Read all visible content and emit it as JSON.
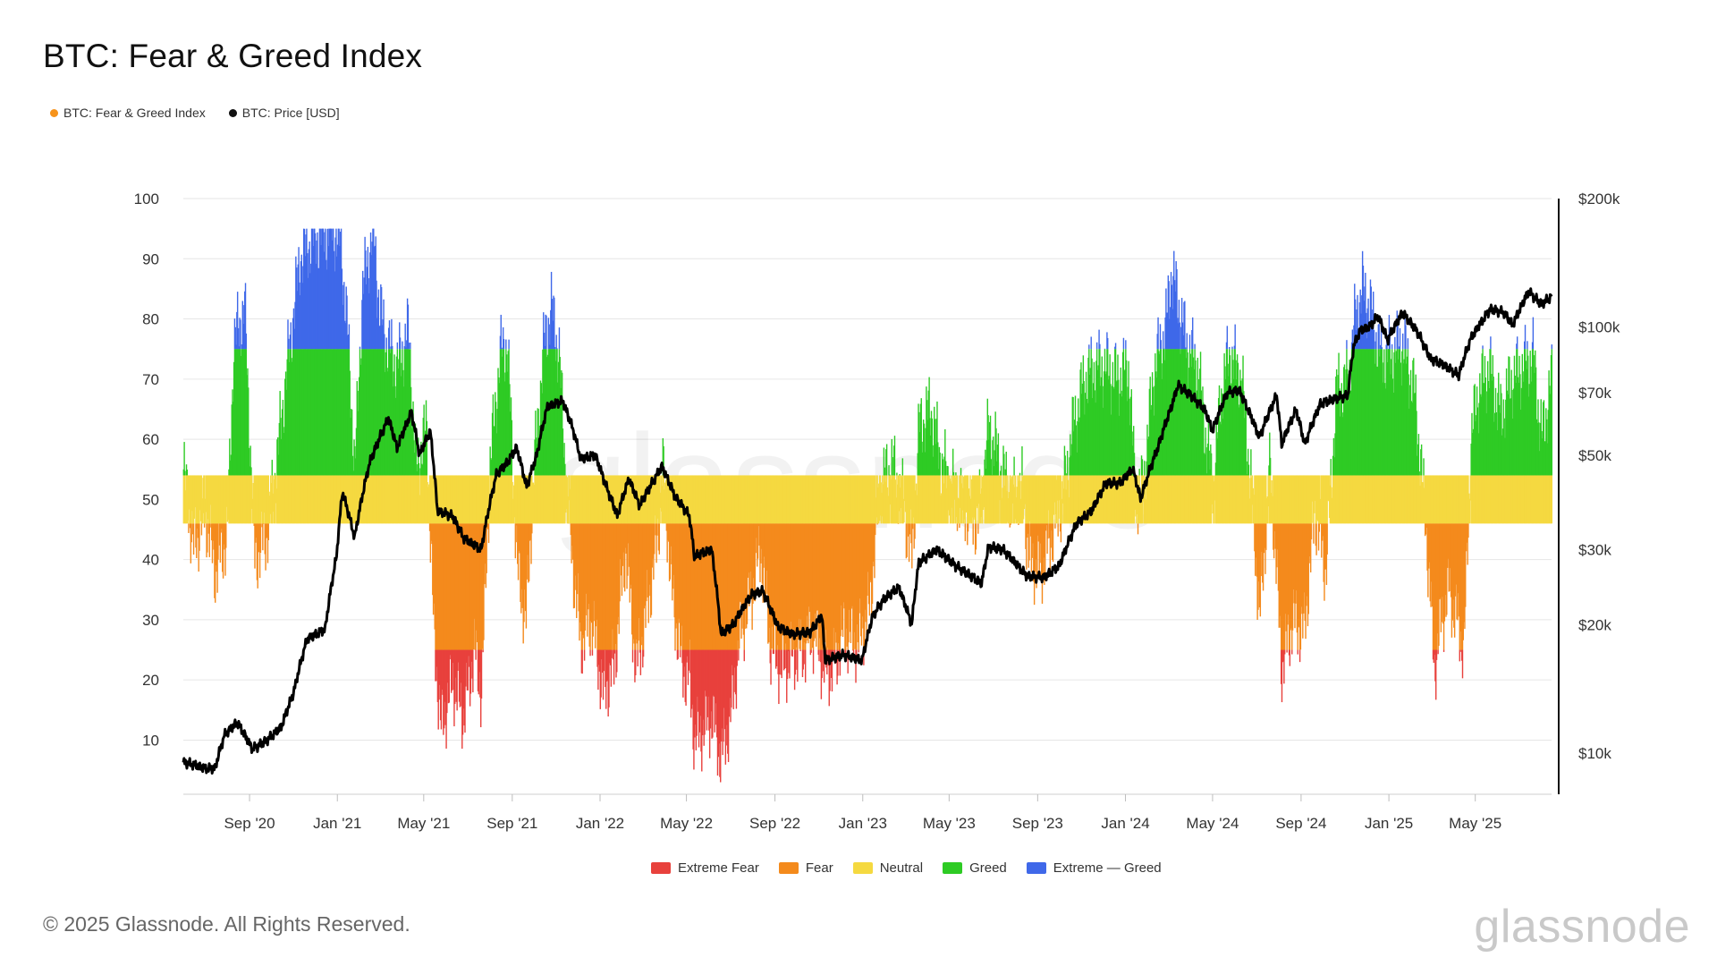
{
  "title": "BTC: Fear & Greed Index",
  "legend_top": [
    {
      "label": "BTC: Fear & Greed Index",
      "color": "#f7931a"
    },
    {
      "label": "BTC: Price [USD]",
      "color": "#111111"
    }
  ],
  "legend_bottom": [
    {
      "label": "Extreme Fear",
      "color": "#e8413c"
    },
    {
      "label": "Fear",
      "color": "#f48a1c"
    },
    {
      "label": "Neutral",
      "color": "#f5d940"
    },
    {
      "label": "Greed",
      "color": "#2ecb24"
    },
    {
      "label": "Extreme — Greed",
      "color": "#3f68e9"
    }
  ],
  "footer": "© 2025 Glassnode. All Rights Reserved.",
  "watermark": "glassnode",
  "brand_logo": "glassnode",
  "chart_data": {
    "type": "bar",
    "x_ticks": [
      "Sep '20",
      "Jan '21",
      "May '21",
      "Sep '21",
      "Jan '22",
      "May '22",
      "Sep '22",
      "Jan '23",
      "May '23",
      "Sep '23",
      "Jan '24",
      "May '24",
      "Sep '24",
      "Jan '25",
      "May '25"
    ],
    "y_left_ticks": [
      "100",
      "90",
      "80",
      "70",
      "60",
      "50",
      "40",
      "30",
      "20",
      "10"
    ],
    "y_left_range": [
      1,
      100
    ],
    "y_right_ticks": [
      {
        "label": "$200k",
        "value": 200000
      },
      {
        "label": "$100k",
        "value": 100000
      },
      {
        "label": "$70k",
        "value": 70000
      },
      {
        "label": "$50k",
        "value": 50000
      },
      {
        "label": "$30k",
        "value": 30000
      },
      {
        "label": "$20k",
        "value": 20000
      },
      {
        "label": "$10k",
        "value": 10000
      }
    ],
    "y_right_scale": "log",
    "y_right_range": [
      8000,
      200000
    ],
    "x_range": [
      "2020-06-01",
      "2025-08-15"
    ],
    "zone_thresholds": [
      {
        "name": "Extreme Fear",
        "min": 0,
        "max": 25,
        "color": "#e8413c"
      },
      {
        "name": "Fear",
        "min": 25,
        "max": 46,
        "color": "#f48a1c"
      },
      {
        "name": "Neutral",
        "min": 46,
        "max": 54,
        "color": "#f5d940"
      },
      {
        "name": "Greed",
        "min": 54,
        "max": 75,
        "color": "#2ecb24"
      },
      {
        "name": "Extreme Greed",
        "min": 75,
        "max": 100,
        "color": "#3f68e9"
      }
    ],
    "series": [
      {
        "name": "BTC: Fear & Greed Index",
        "axis": "left",
        "points": [
          [
            "2020-06-01",
            55
          ],
          [
            "2020-06-15",
            42
          ],
          [
            "2020-07-01",
            48
          ],
          [
            "2020-07-15",
            38
          ],
          [
            "2020-08-01",
            44
          ],
          [
            "2020-08-10",
            76
          ],
          [
            "2020-08-25",
            82
          ],
          [
            "2020-09-08",
            40
          ],
          [
            "2020-09-25",
            44
          ],
          [
            "2020-10-10",
            58
          ],
          [
            "2020-10-25",
            74
          ],
          [
            "2020-11-10",
            90
          ],
          [
            "2020-11-25",
            93
          ],
          [
            "2020-12-10",
            94
          ],
          [
            "2020-12-25",
            95
          ],
          [
            "2021-01-05",
            93
          ],
          [
            "2021-01-15",
            78
          ],
          [
            "2021-01-25",
            55
          ],
          [
            "2021-02-05",
            85
          ],
          [
            "2021-02-20",
            95
          ],
          [
            "2021-02-28",
            82
          ],
          [
            "2021-03-10",
            76
          ],
          [
            "2021-03-25",
            72
          ],
          [
            "2021-04-10",
            78
          ],
          [
            "2021-04-20",
            55
          ],
          [
            "2021-05-05",
            62
          ],
          [
            "2021-05-15",
            27
          ],
          [
            "2021-05-25",
            12
          ],
          [
            "2021-06-10",
            20
          ],
          [
            "2021-06-25",
            14
          ],
          [
            "2021-07-10",
            25
          ],
          [
            "2021-07-20",
            18
          ],
          [
            "2021-08-01",
            56
          ],
          [
            "2021-08-15",
            74
          ],
          [
            "2021-08-25",
            76
          ],
          [
            "2021-09-08",
            38
          ],
          [
            "2021-09-20",
            30
          ],
          [
            "2021-10-01",
            55
          ],
          [
            "2021-10-15",
            76
          ],
          [
            "2021-10-25",
            82
          ],
          [
            "2021-11-05",
            74
          ],
          [
            "2021-11-15",
            52
          ],
          [
            "2021-11-25",
            38
          ],
          [
            "2021-12-05",
            26
          ],
          [
            "2021-12-20",
            30
          ],
          [
            "2022-01-05",
            18
          ],
          [
            "2022-01-20",
            22
          ],
          [
            "2022-02-05",
            42
          ],
          [
            "2022-02-20",
            22
          ],
          [
            "2022-03-05",
            30
          ],
          [
            "2022-03-20",
            42
          ],
          [
            "2022-03-30",
            55
          ],
          [
            "2022-04-10",
            35
          ],
          [
            "2022-04-25",
            22
          ],
          [
            "2022-05-05",
            20
          ],
          [
            "2022-05-12",
            10
          ],
          [
            "2022-05-25",
            12
          ],
          [
            "2022-06-05",
            14
          ],
          [
            "2022-06-18",
            7
          ],
          [
            "2022-07-01",
            14
          ],
          [
            "2022-07-15",
            28
          ],
          [
            "2022-07-30",
            34
          ],
          [
            "2022-08-12",
            42
          ],
          [
            "2022-08-25",
            26
          ],
          [
            "2022-09-10",
            22
          ],
          [
            "2022-09-25",
            24
          ],
          [
            "2022-10-10",
            25
          ],
          [
            "2022-10-25",
            28
          ],
          [
            "2022-11-08",
            22
          ],
          [
            "2022-11-20",
            22
          ],
          [
            "2022-12-05",
            28
          ],
          [
            "2022-12-25",
            26
          ],
          [
            "2023-01-10",
            32
          ],
          [
            "2023-01-25",
            52
          ],
          [
            "2023-02-10",
            56
          ],
          [
            "2023-02-25",
            50
          ],
          [
            "2023-03-10",
            40
          ],
          [
            "2023-03-20",
            62
          ],
          [
            "2023-04-05",
            65
          ],
          [
            "2023-04-20",
            56
          ],
          [
            "2023-05-05",
            52
          ],
          [
            "2023-05-25",
            48
          ],
          [
            "2023-06-10",
            46
          ],
          [
            "2023-06-25",
            62
          ],
          [
            "2023-07-10",
            56
          ],
          [
            "2023-07-25",
            50
          ],
          [
            "2023-08-10",
            52
          ],
          [
            "2023-08-20",
            40
          ],
          [
            "2023-09-05",
            38
          ],
          [
            "2023-09-20",
            44
          ],
          [
            "2023-10-05",
            50
          ],
          [
            "2023-10-20",
            62
          ],
          [
            "2023-11-05",
            70
          ],
          [
            "2023-11-20",
            72
          ],
          [
            "2023-12-05",
            72
          ],
          [
            "2023-12-20",
            70
          ],
          [
            "2024-01-05",
            72
          ],
          [
            "2024-01-15",
            50
          ],
          [
            "2024-01-25",
            52
          ],
          [
            "2024-02-10",
            72
          ],
          [
            "2024-02-25",
            78
          ],
          [
            "2024-03-05",
            88
          ],
          [
            "2024-03-15",
            82
          ],
          [
            "2024-03-25",
            76
          ],
          [
            "2024-04-10",
            72
          ],
          [
            "2024-04-20",
            62
          ],
          [
            "2024-05-01",
            52
          ],
          [
            "2024-05-15",
            70
          ],
          [
            "2024-05-25",
            74
          ],
          [
            "2024-06-10",
            70
          ],
          [
            "2024-06-25",
            50
          ],
          [
            "2024-07-05",
            30
          ],
          [
            "2024-07-20",
            56
          ],
          [
            "2024-08-05",
            22
          ],
          [
            "2024-08-20",
            30
          ],
          [
            "2024-09-05",
            28
          ],
          [
            "2024-09-20",
            48
          ],
          [
            "2024-10-05",
            38
          ],
          [
            "2024-10-20",
            68
          ],
          [
            "2024-11-05",
            70
          ],
          [
            "2024-11-15",
            80
          ],
          [
            "2024-11-25",
            85
          ],
          [
            "2024-12-05",
            82
          ],
          [
            "2024-12-20",
            74
          ],
          [
            "2025-01-05",
            74
          ],
          [
            "2025-01-20",
            76
          ],
          [
            "2025-02-05",
            68
          ],
          [
            "2025-02-20",
            48
          ],
          [
            "2025-03-05",
            22
          ],
          [
            "2025-03-15",
            30
          ],
          [
            "2025-03-25",
            35
          ],
          [
            "2025-04-05",
            30
          ],
          [
            "2025-04-15",
            25
          ],
          [
            "2025-04-25",
            60
          ],
          [
            "2025-05-05",
            68
          ],
          [
            "2025-05-20",
            72
          ],
          [
            "2025-06-05",
            64
          ],
          [
            "2025-06-20",
            70
          ],
          [
            "2025-07-05",
            72
          ],
          [
            "2025-07-20",
            74
          ],
          [
            "2025-08-01",
            60
          ],
          [
            "2025-08-15",
            70
          ]
        ]
      },
      {
        "name": "BTC: Price [USD]",
        "axis": "right",
        "points": [
          [
            "2020-06-01",
            9500
          ],
          [
            "2020-06-15",
            9400
          ],
          [
            "2020-07-01",
            9200
          ],
          [
            "2020-07-15",
            9200
          ],
          [
            "2020-07-28",
            11000
          ],
          [
            "2020-08-15",
            11800
          ],
          [
            "2020-09-05",
            10200
          ],
          [
            "2020-09-25",
            10700
          ],
          [
            "2020-10-15",
            11500
          ],
          [
            "2020-11-01",
            13800
          ],
          [
            "2020-11-20",
            18500
          ],
          [
            "2020-12-15",
            19500
          ],
          [
            "2020-12-31",
            29000
          ],
          [
            "2021-01-08",
            41000
          ],
          [
            "2021-01-25",
            32000
          ],
          [
            "2021-02-15",
            48000
          ],
          [
            "2021-03-13",
            61000
          ],
          [
            "2021-03-25",
            52000
          ],
          [
            "2021-04-14",
            63000
          ],
          [
            "2021-04-25",
            50000
          ],
          [
            "2021-05-10",
            57000
          ],
          [
            "2021-05-20",
            37000
          ],
          [
            "2021-06-10",
            36000
          ],
          [
            "2021-06-25",
            32000
          ],
          [
            "2021-07-20",
            30000
          ],
          [
            "2021-08-10",
            45000
          ],
          [
            "2021-08-25",
            48000
          ],
          [
            "2021-09-07",
            52000
          ],
          [
            "2021-09-21",
            42000
          ],
          [
            "2021-10-05",
            50000
          ],
          [
            "2021-10-20",
            65000
          ],
          [
            "2021-11-10",
            67000
          ],
          [
            "2021-11-25",
            57000
          ],
          [
            "2021-12-05",
            49000
          ],
          [
            "2021-12-25",
            50000
          ],
          [
            "2022-01-10",
            42000
          ],
          [
            "2022-01-25",
            36000
          ],
          [
            "2022-02-10",
            44000
          ],
          [
            "2022-02-25",
            38000
          ],
          [
            "2022-03-28",
            47000
          ],
          [
            "2022-04-15",
            40000
          ],
          [
            "2022-05-05",
            36000
          ],
          [
            "2022-05-12",
            29000
          ],
          [
            "2022-06-05",
            30000
          ],
          [
            "2022-06-18",
            19000
          ],
          [
            "2022-07-05",
            20000
          ],
          [
            "2022-07-30",
            23500
          ],
          [
            "2022-08-15",
            24000
          ],
          [
            "2022-09-05",
            19800
          ],
          [
            "2022-09-25",
            19000
          ],
          [
            "2022-10-20",
            19200
          ],
          [
            "2022-11-05",
            21000
          ],
          [
            "2022-11-10",
            16500
          ],
          [
            "2022-12-05",
            17000
          ],
          [
            "2022-12-31",
            16500
          ],
          [
            "2023-01-15",
            21000
          ],
          [
            "2023-01-31",
            23000
          ],
          [
            "2023-02-20",
            24500
          ],
          [
            "2023-03-10",
            20000
          ],
          [
            "2023-03-20",
            28000
          ],
          [
            "2023-04-14",
            30000
          ],
          [
            "2023-05-10",
            27500
          ],
          [
            "2023-06-15",
            25000
          ],
          [
            "2023-06-25",
            30500
          ],
          [
            "2023-07-15",
            30000
          ],
          [
            "2023-08-17",
            26000
          ],
          [
            "2023-09-10",
            25800
          ],
          [
            "2023-10-01",
            27500
          ],
          [
            "2023-10-25",
            34500
          ],
          [
            "2023-11-15",
            37000
          ],
          [
            "2023-12-05",
            43000
          ],
          [
            "2023-12-25",
            43000
          ],
          [
            "2024-01-11",
            46500
          ],
          [
            "2024-01-22",
            39500
          ],
          [
            "2024-02-15",
            52000
          ],
          [
            "2024-03-05",
            65000
          ],
          [
            "2024-03-14",
            73000
          ],
          [
            "2024-04-01",
            69000
          ],
          [
            "2024-04-20",
            64000
          ],
          [
            "2024-05-01",
            57000
          ],
          [
            "2024-05-21",
            70000
          ],
          [
            "2024-06-07",
            71000
          ],
          [
            "2024-07-05",
            55000
          ],
          [
            "2024-07-29",
            69000
          ],
          [
            "2024-08-05",
            53000
          ],
          [
            "2024-08-25",
            64000
          ],
          [
            "2024-09-06",
            53000
          ],
          [
            "2024-09-28",
            66000
          ],
          [
            "2024-10-20",
            68000
          ],
          [
            "2024-11-05",
            69000
          ],
          [
            "2024-11-13",
            90000
          ],
          [
            "2024-11-22",
            98000
          ],
          [
            "2024-12-05",
            100000
          ],
          [
            "2024-12-17",
            106000
          ],
          [
            "2024-12-30",
            93000
          ],
          [
            "2025-01-20",
            108000
          ],
          [
            "2025-02-10",
            97000
          ],
          [
            "2025-02-28",
            84000
          ],
          [
            "2025-03-15",
            82000
          ],
          [
            "2025-04-08",
            77000
          ],
          [
            "2025-04-25",
            94000
          ],
          [
            "2025-05-22",
            110000
          ],
          [
            "2025-06-10",
            108000
          ],
          [
            "2025-06-22",
            101000
          ],
          [
            "2025-07-14",
            121000
          ],
          [
            "2025-08-01",
            113000
          ],
          [
            "2025-08-15",
            118000
          ]
        ]
      }
    ]
  }
}
